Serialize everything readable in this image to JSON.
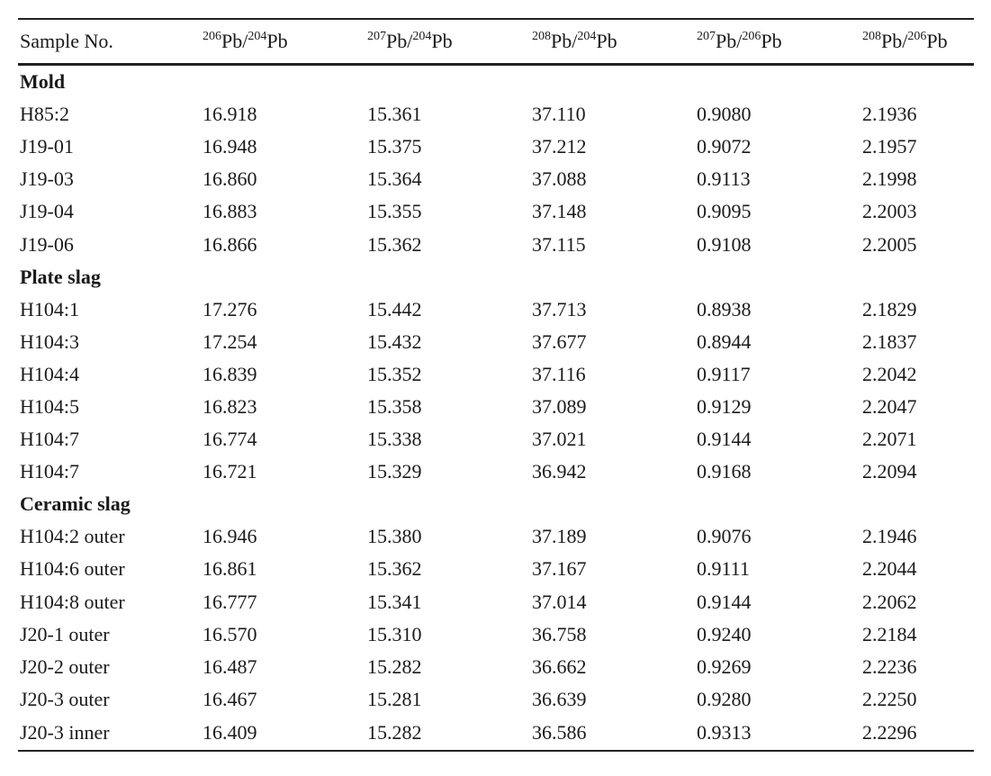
{
  "header": {
    "sample": "Sample No.",
    "cols": [
      {
        "a_iso": "206",
        "a_el": "Pb",
        "b_iso": "204",
        "b_el": "Pb"
      },
      {
        "a_iso": "207",
        "a_el": "Pb",
        "b_iso": "204",
        "b_el": "Pb"
      },
      {
        "a_iso": "208",
        "a_el": "Pb",
        "b_iso": "204",
        "b_el": "Pb"
      },
      {
        "a_iso": "207",
        "a_el": "Pb",
        "b_iso": "206",
        "b_el": "Pb"
      },
      {
        "a_iso": "208",
        "a_el": "Pb",
        "b_iso": "206",
        "b_el": "Pb"
      }
    ]
  },
  "groups": [
    {
      "name": "Mold",
      "rows": [
        [
          "H85:2",
          "16.918",
          "15.361",
          "37.110",
          "0.9080",
          "2.1936"
        ],
        [
          "J19-01",
          "16.948",
          "15.375",
          "37.212",
          "0.9072",
          "2.1957"
        ],
        [
          "J19-03",
          "16.860",
          "15.364",
          "37.088",
          "0.9113",
          "2.1998"
        ],
        [
          "J19-04",
          "16.883",
          "15.355",
          "37.148",
          "0.9095",
          "2.2003"
        ],
        [
          "J19-06",
          "16.866",
          "15.362",
          "37.115",
          "0.9108",
          "2.2005"
        ]
      ]
    },
    {
      "name": "Plate slag",
      "rows": [
        [
          "H104:1",
          "17.276",
          "15.442",
          "37.713",
          "0.8938",
          "2.1829"
        ],
        [
          "H104:3",
          "17.254",
          "15.432",
          "37.677",
          "0.8944",
          "2.1837"
        ],
        [
          "H104:4",
          "16.839",
          "15.352",
          "37.116",
          "0.9117",
          "2.2042"
        ],
        [
          "H104:5",
          "16.823",
          "15.358",
          "37.089",
          "0.9129",
          "2.2047"
        ],
        [
          "H104:7",
          "16.774",
          "15.338",
          "37.021",
          "0.9144",
          "2.2071"
        ],
        [
          "H104:7",
          "16.721",
          "15.329",
          "36.942",
          "0.9168",
          "2.2094"
        ]
      ]
    },
    {
      "name": "Ceramic slag",
      "rows": [
        [
          "H104:2 outer",
          "16.946",
          "15.380",
          "37.189",
          "0.9076",
          "2.1946"
        ],
        [
          "H104:6 outer",
          "16.861",
          "15.362",
          "37.167",
          "0.9111",
          "2.2044"
        ],
        [
          "H104:8 outer",
          "16.777",
          "15.341",
          "37.014",
          "0.9144",
          "2.2062"
        ],
        [
          "J20-1 outer",
          "16.570",
          "15.310",
          "36.758",
          "0.9240",
          "2.2184"
        ],
        [
          "J20-2 outer",
          "16.487",
          "15.282",
          "36.662",
          "0.9269",
          "2.2236"
        ],
        [
          "J20-3 outer",
          "16.467",
          "15.281",
          "36.639",
          "0.9280",
          "2.2250"
        ],
        [
          "J20-3 inner",
          "16.409",
          "15.282",
          "36.586",
          "0.9313",
          "2.2296"
        ]
      ]
    }
  ]
}
